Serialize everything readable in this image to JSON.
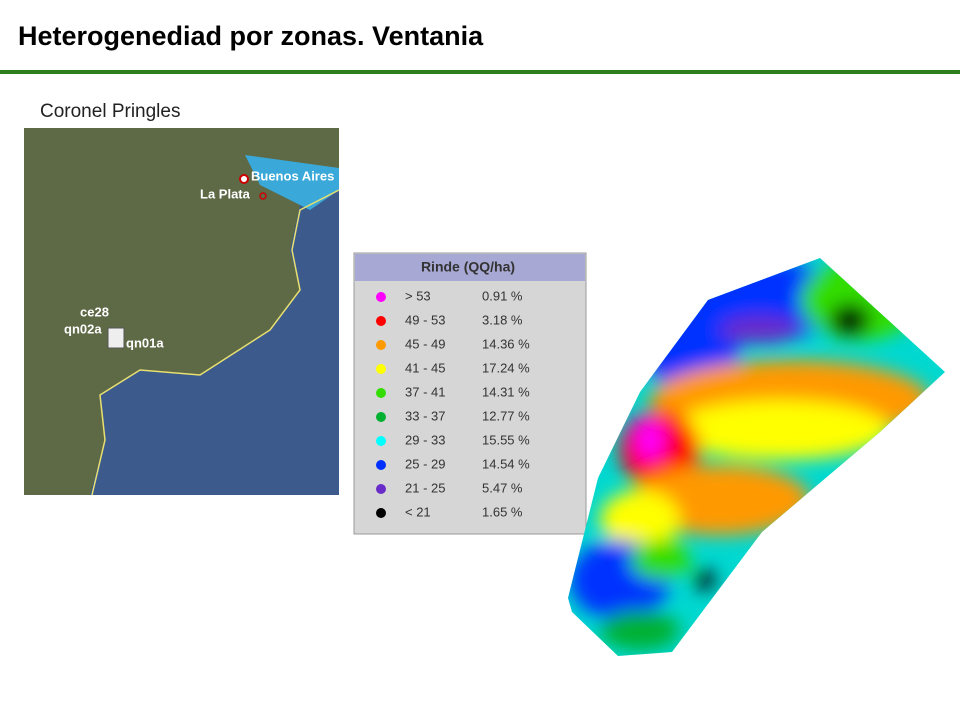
{
  "header": {
    "title": "Heterogenediad por zonas. Ventania"
  },
  "subtitle": "Coronel Pringles",
  "map": {
    "labels": [
      "Buenos Aires",
      "La Plata",
      "ce28",
      "qn02a",
      "qn01a"
    ]
  },
  "legend": {
    "title": "Rinde (QQ/ha)",
    "rows": [
      {
        "range": "> 53",
        "percent": "0.91 %",
        "color": "#ff00ff"
      },
      {
        "range": "49 - 53",
        "percent": "3.18 %",
        "color": "#ff0000"
      },
      {
        "range": "45 - 49",
        "percent": "14.36 %",
        "color": "#ff9900"
      },
      {
        "range": "41 - 45",
        "percent": "17.24 %",
        "color": "#ffff00"
      },
      {
        "range": "37 - 41",
        "percent": "14.31 %",
        "color": "#33dd00"
      },
      {
        "range": "33 - 37",
        "percent": "12.77 %",
        "color": "#00b030"
      },
      {
        "range": "29 - 33",
        "percent": "15.55 %",
        "color": "#00ffff"
      },
      {
        "range": "25 - 29",
        "percent": "14.54 %",
        "color": "#0030ff"
      },
      {
        "range": "21 - 25",
        "percent": "5.47 %",
        "color": "#6a2cc8"
      },
      {
        "range": "< 21",
        "percent": "1.65 %",
        "color": "#000000"
      }
    ]
  }
}
